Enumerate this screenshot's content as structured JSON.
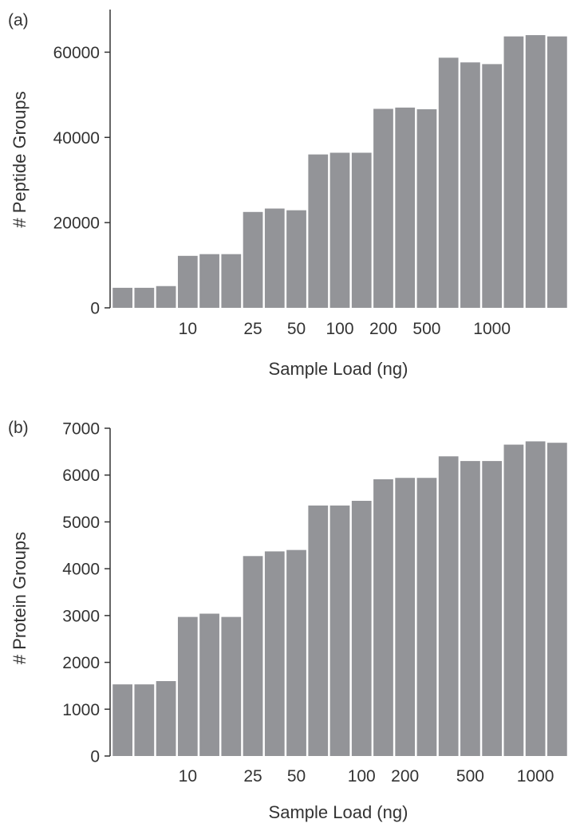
{
  "chart_data": [
    {
      "panel_label": "(a)",
      "type": "bar",
      "ylabel": "# Peptide Groups",
      "xlabel": "Sample Load (ng)",
      "ylim": [
        0,
        70000
      ],
      "yticks": [
        0,
        20000,
        40000,
        60000
      ],
      "xtick_labels": [
        "10",
        "25",
        "50",
        "100",
        "200",
        "500",
        "1000"
      ],
      "xtick_bar_index": [
        3,
        6,
        8,
        10,
        12,
        14,
        17
      ],
      "bar_color": "#939498",
      "values": [
        4700,
        4700,
        5100,
        12200,
        12600,
        12600,
        22500,
        23300,
        22900,
        36000,
        36400,
        36400,
        46700,
        47000,
        46600,
        58700,
        57600,
        57200,
        63700,
        64000,
        63700
      ]
    },
    {
      "panel_label": "(b)",
      "type": "bar",
      "ylabel": "# Protein Groups",
      "xlabel": "Sample Load (ng)",
      "ylim": [
        0,
        7000
      ],
      "yticks": [
        0,
        1000,
        2000,
        3000,
        4000,
        5000,
        6000,
        7000
      ],
      "xtick_labels": [
        "10",
        "25",
        "50",
        "100",
        "200",
        "500",
        "1000"
      ],
      "xtick_bar_index": [
        3,
        6,
        8,
        11,
        13,
        16,
        19
      ],
      "bar_color": "#939498",
      "values": [
        1530,
        1530,
        1600,
        2970,
        3040,
        2970,
        4270,
        4370,
        4400,
        5350,
        5350,
        5450,
        5910,
        5940,
        5940,
        6400,
        6300,
        6300,
        6650,
        6720,
        6690
      ]
    }
  ]
}
